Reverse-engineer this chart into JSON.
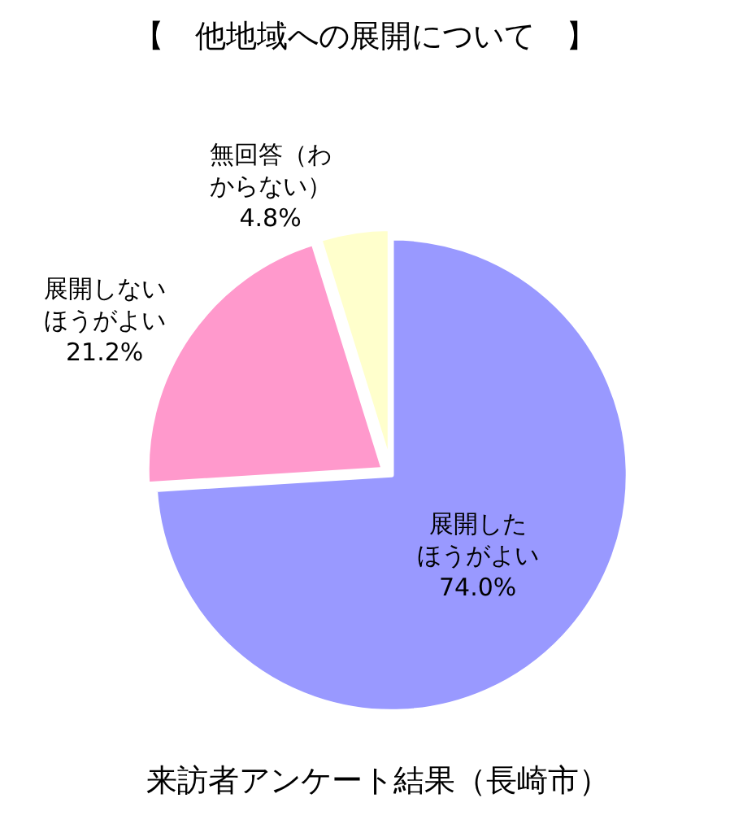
{
  "chart_data": {
    "type": "pie",
    "title": "【　他地域への展開について　】",
    "categories": [
      "展開したほうがよい",
      "展開しないほうがよい",
      "無回答（わからない）"
    ],
    "values": [
      74.0,
      21.2,
      4.8
    ],
    "value_labels": [
      "74.0%",
      "21.2%",
      "4.8%"
    ],
    "colors": [
      "#9999ff",
      "#ff99cc",
      "#ffffcc"
    ],
    "annotations": [
      "来訪者アンケート結果（長崎市）"
    ],
    "legend": false
  }
}
